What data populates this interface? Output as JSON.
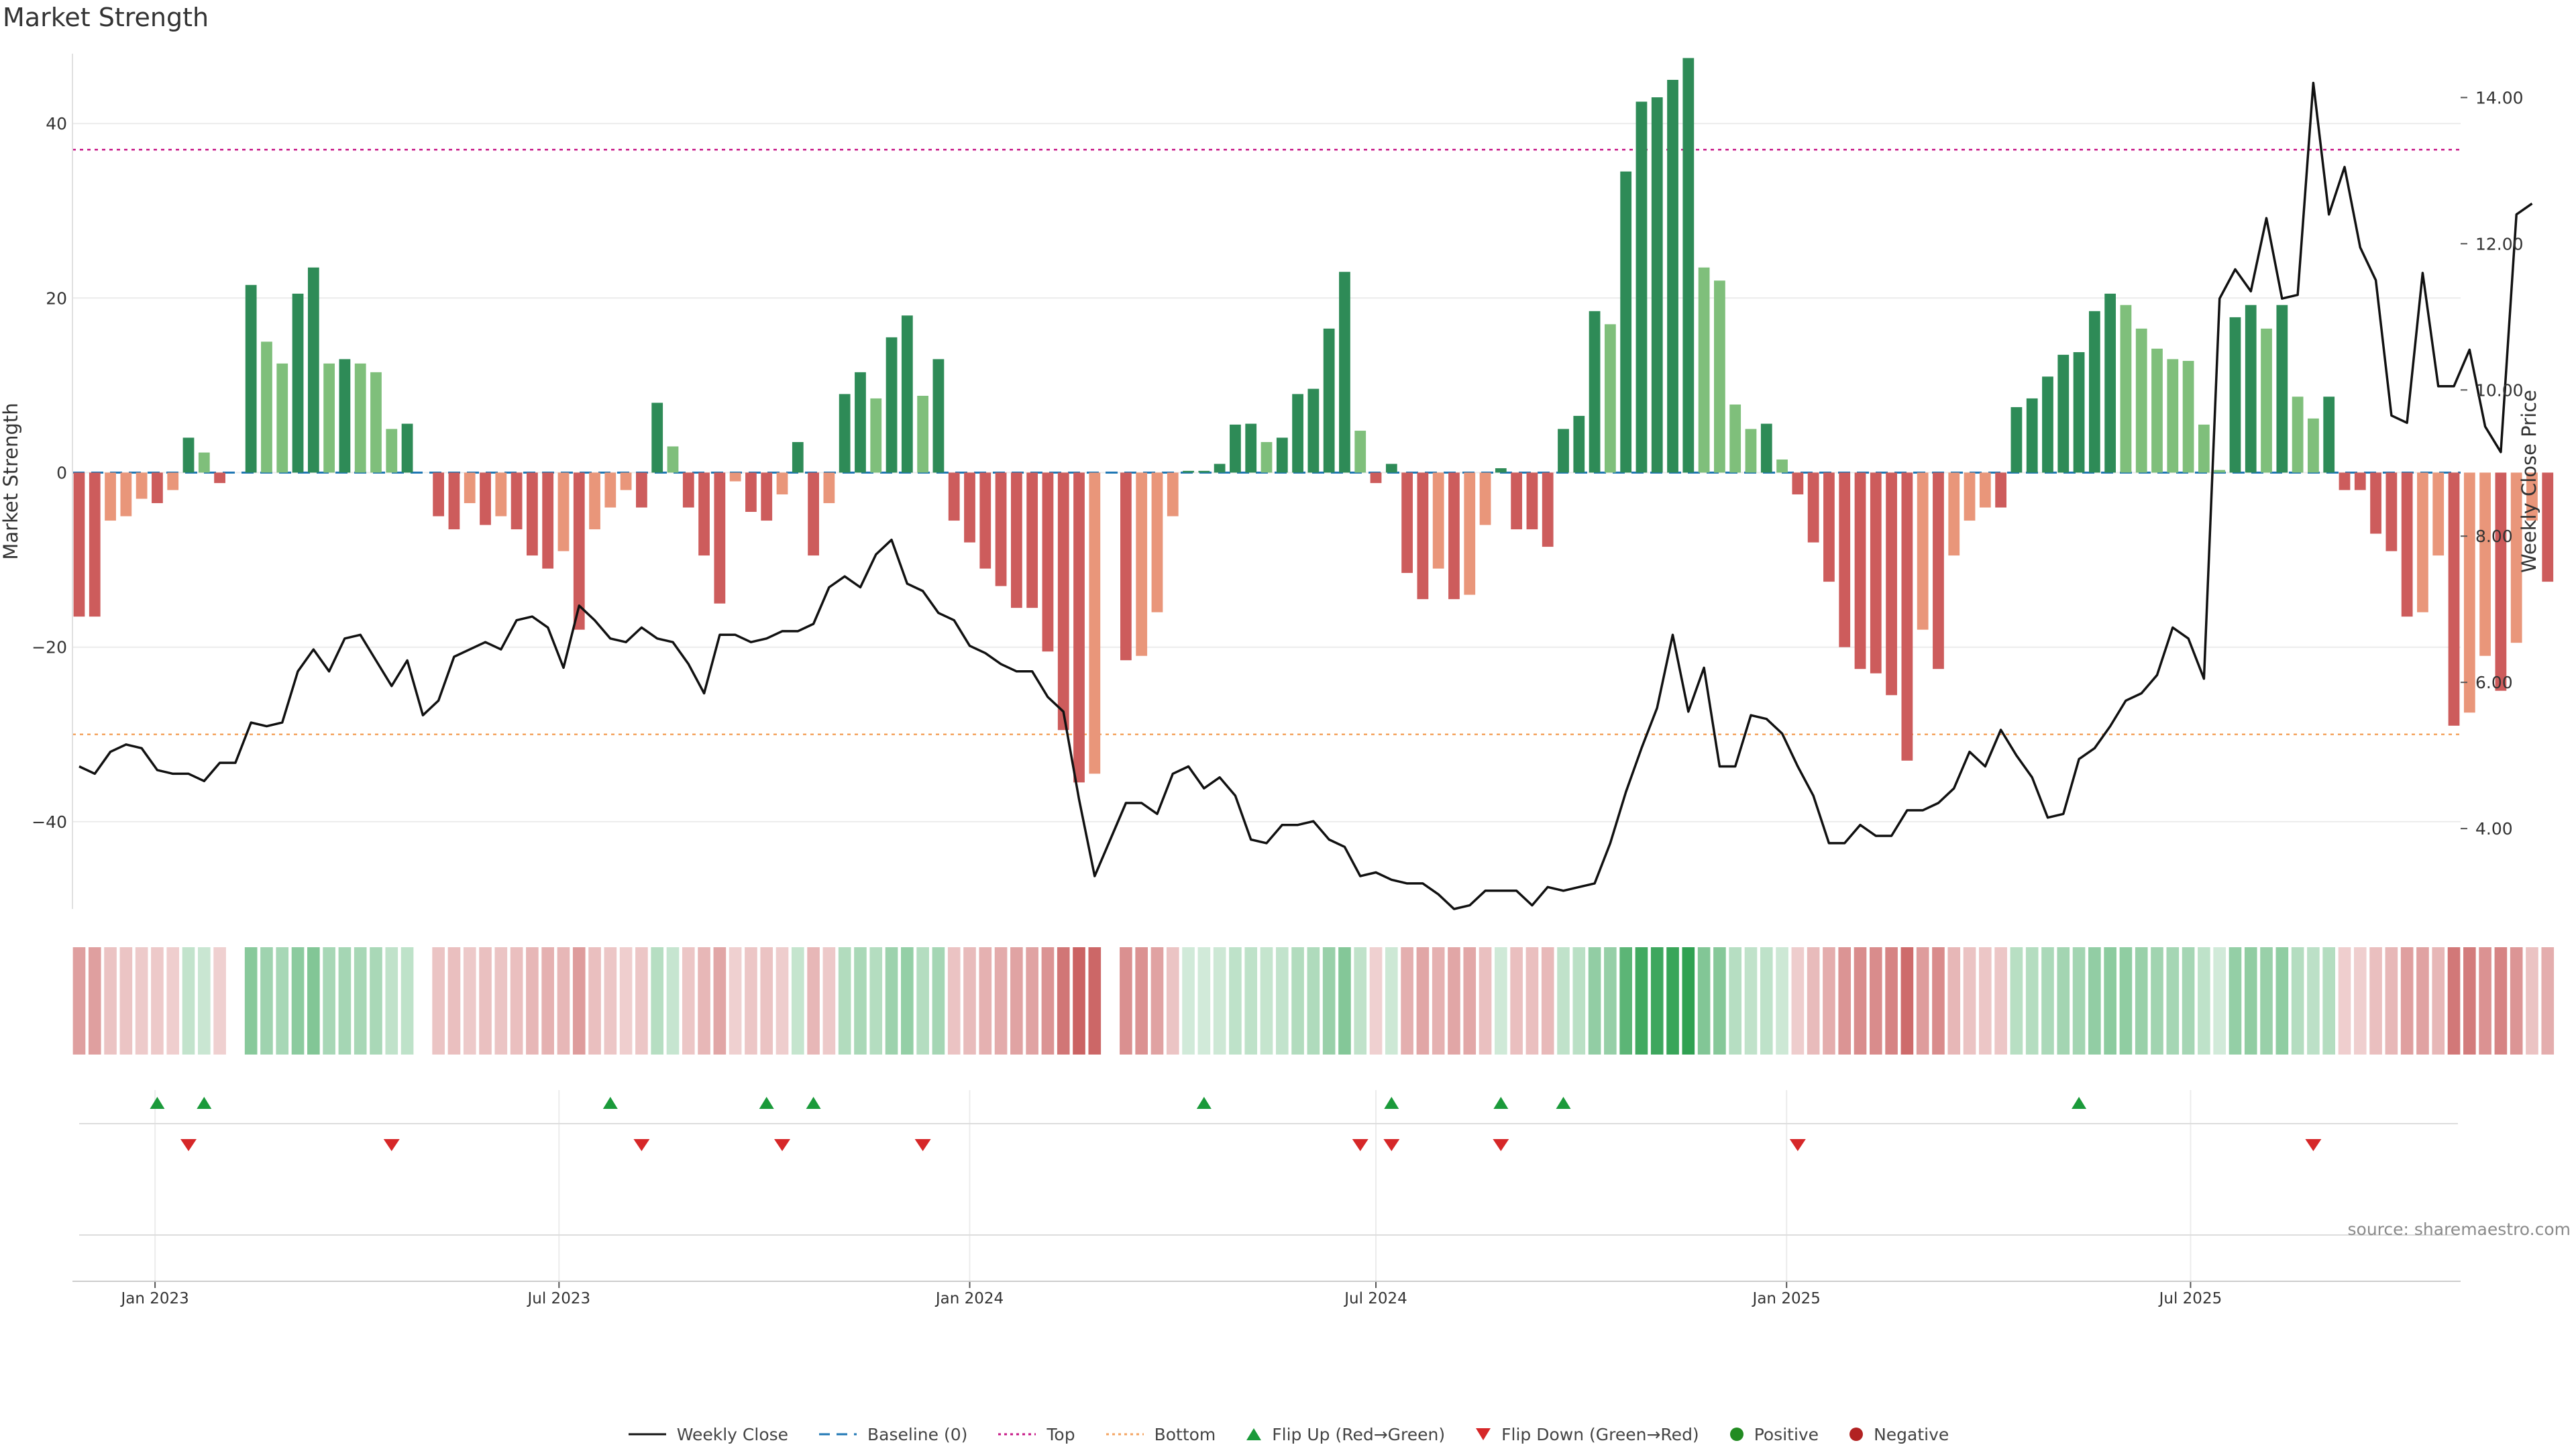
{
  "title": "Market Strength",
  "source": "source: sharemaestro.com",
  "colors": {
    "pos_strong": "#2e8b57",
    "pos_light": "#7fbf7b",
    "neg_strong": "#cd5c5c",
    "neg_light": "#e9967a",
    "price_line": "#111111",
    "baseline": "#1f77b4",
    "top": "#c71585",
    "bottom": "#f4a460",
    "flip_up": "#1a9a3a",
    "flip_down": "#d62728",
    "positive_dot": "#228b22",
    "negative_dot": "#b22222"
  },
  "legend": {
    "items": [
      {
        "key": "weekly_close",
        "label": "Weekly Close"
      },
      {
        "key": "baseline",
        "label": "Baseline (0)"
      },
      {
        "key": "top",
        "label": "Top"
      },
      {
        "key": "bottom",
        "label": "Bottom"
      },
      {
        "key": "flip_up",
        "label": "Flip Up (Red→Green)"
      },
      {
        "key": "flip_down",
        "label": "Flip Down (Green→Red)"
      },
      {
        "key": "positive",
        "label": "Positive"
      },
      {
        "key": "negative",
        "label": "Negative"
      }
    ]
  },
  "chart_data": {
    "type": "bar",
    "ylabel": "Market Strength",
    "y2label": "Weekly Close Price",
    "ylim": [
      -50,
      48
    ],
    "y2lim": [
      2.9,
      14.6
    ],
    "yticks": [
      -40,
      -20,
      0,
      20,
      40
    ],
    "y2ticks": [
      "4.00",
      "6.00",
      "8.00",
      "10.00",
      "12.00",
      "14.00"
    ],
    "xlim": [
      "2022-11-25",
      "2025-10-30"
    ],
    "xticks": [
      {
        "date": "2023-01-01",
        "label": "Jan 2023"
      },
      {
        "date": "2023-07-01",
        "label": "Jul 2023"
      },
      {
        "date": "2024-01-01",
        "label": "Jan 2024"
      },
      {
        "date": "2024-07-01",
        "label": "Jul 2024"
      },
      {
        "date": "2025-01-01",
        "label": "Jan 2025"
      },
      {
        "date": "2025-07-01",
        "label": "Jul 2025"
      }
    ],
    "start_date": "2022-11-28",
    "thresholds": {
      "top": 37,
      "bottom": -30,
      "baseline": 0
    },
    "strength": [
      -16.5,
      -16.5,
      -5.5,
      -5,
      -3,
      -3.5,
      -2,
      4,
      2.3,
      -1.2,
      0,
      21.5,
      15,
      12.5,
      20.5,
      23.5,
      12.5,
      13,
      12.5,
      11.5,
      5,
      5.6,
      0,
      -5,
      -6.5,
      -3.5,
      -6,
      -5,
      -6.5,
      -9.5,
      -11,
      -9,
      -18,
      -6.5,
      -4,
      -2,
      -4,
      8,
      3,
      -4,
      -9.5,
      -15,
      -1,
      -4.5,
      -5.5,
      -2.5,
      3.5,
      -9.5,
      -3.5,
      9,
      11.5,
      8.5,
      15.5,
      18,
      8.8,
      13,
      -5.5,
      -8,
      -11,
      -13,
      -15.5,
      -15.5,
      -20.5,
      -29.5,
      -35.5,
      -34.5,
      0,
      -21.5,
      -21,
      -16,
      -5,
      0.2,
      0.2,
      1,
      5.5,
      5.6,
      3.5,
      4,
      9,
      9.6,
      16.5,
      23,
      4.8,
      -1.2,
      1,
      -11.5,
      -14.5,
      -11,
      -14.5,
      -14,
      -6,
      0.5,
      -6.5,
      -6.5,
      -8.5,
      5,
      6.5,
      18.5,
      17,
      34.5,
      42.5,
      43,
      45,
      47.5,
      23.5,
      22,
      7.8,
      5,
      5.6,
      1.5,
      -2.5,
      -8,
      -12.5,
      -20,
      -22.5,
      -23,
      -25.5,
      -33,
      -18,
      -22.5,
      -9.5,
      -5.5,
      -4,
      -4,
      7.5,
      8.5,
      11,
      13.5,
      13.8,
      18.5,
      20.5,
      19.2,
      16.5,
      14.2,
      13,
      12.8,
      5.5,
      0.3,
      17.8,
      19.2,
      16.5,
      19.2,
      8.7,
      6.2,
      8.7,
      -2,
      -2,
      -7,
      -9,
      -16.5,
      -16,
      -9.5,
      -29,
      -27.5,
      -21,
      -25,
      -19.5,
      -5.5,
      -12.5
    ],
    "weekly_close": [
      4.85,
      4.75,
      5.05,
      5.15,
      5.1,
      4.8,
      4.75,
      4.75,
      4.65,
      4.9,
      4.9,
      5.45,
      5.4,
      5.45,
      6.15,
      6.45,
      6.15,
      6.6,
      6.65,
      6.3,
      5.95,
      6.3,
      5.55,
      5.75,
      6.35,
      6.45,
      6.55,
      6.45,
      6.85,
      6.9,
      6.75,
      6.2,
      7.05,
      6.85,
      6.6,
      6.55,
      6.75,
      6.6,
      6.55,
      6.25,
      5.85,
      6.65,
      6.65,
      6.55,
      6.6,
      6.7,
      6.7,
      6.8,
      7.3,
      7.45,
      7.3,
      7.75,
      7.95,
      7.35,
      7.25,
      6.95,
      6.85,
      6.5,
      6.4,
      6.25,
      6.15,
      6.15,
      5.8,
      5.6,
      4.4,
      3.35,
      3.85,
      4.35,
      4.35,
      4.2,
      4.75,
      4.85,
      4.55,
      4.7,
      4.45,
      3.85,
      3.8,
      4.05,
      4.05,
      4.1,
      3.85,
      3.75,
      3.35,
      3.4,
      3.3,
      3.25,
      3.25,
      3.1,
      2.9,
      2.95,
      3.15,
      3.15,
      3.15,
      2.95,
      3.2,
      3.15,
      3.2,
      3.25,
      3.8,
      4.5,
      5.1,
      5.65,
      6.65,
      5.6,
      6.2,
      4.85,
      4.85,
      5.55,
      5.5,
      5.3,
      4.85,
      4.45,
      3.8,
      3.8,
      4.05,
      3.9,
      3.9,
      4.25,
      4.25,
      4.35,
      4.55,
      5.05,
      4.85,
      5.35,
      5.0,
      4.7,
      4.15,
      4.2,
      4.95,
      5.1,
      5.4,
      5.75,
      5.85,
      6.1,
      6.75,
      6.6,
      6.05,
      11.25,
      11.65,
      11.35,
      12.35,
      11.25,
      11.3,
      14.2,
      12.4,
      13.05,
      11.95,
      11.5,
      9.65,
      9.55,
      11.6,
      10.05,
      10.05,
      10.55,
      9.5,
      9.15,
      12.4,
      12.55
    ],
    "flip_up": [
      "2023-01-02",
      "2023-01-23",
      "2023-07-24",
      "2023-10-02",
      "2023-10-23",
      "2024-04-15",
      "2024-07-08",
      "2024-08-26",
      "2024-09-23",
      "2025-05-12"
    ],
    "flip_down": [
      "2023-01-16",
      "2023-04-17",
      "2023-08-07",
      "2023-10-09",
      "2023-12-11",
      "2024-06-24",
      "2024-07-08",
      "2024-08-26",
      "2025-01-06",
      "2025-08-25"
    ]
  }
}
